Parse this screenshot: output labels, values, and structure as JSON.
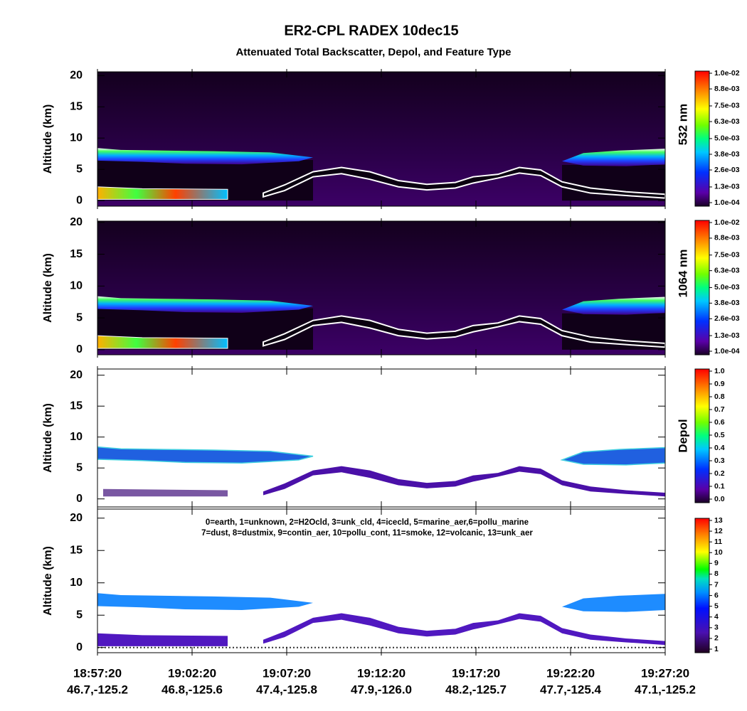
{
  "title": "ER2-CPL RADEX 10dec15",
  "subtitle": "Attenuated Total Backscatter, Depol, and Feature Type",
  "time_axis": {
    "categories": [
      "18:57:20",
      "19:02:20",
      "19:07:20",
      "19:12:20",
      "19:17:20",
      "19:22:20",
      "19:27:20"
    ],
    "locations": [
      "46.7,-125.2",
      "46.8,-125.6",
      "47.4,-125.8",
      "47.9,-126.0",
      "48.2,-125.7",
      "47.7,-125.4",
      "47.1,-125.2"
    ]
  },
  "chart_data": [
    {
      "type": "curtain",
      "variant": "backscatter",
      "ylabel": "Altitude (km)",
      "ylim": [
        -0.9,
        20.6
      ],
      "yticks": [
        0,
        5,
        10,
        15,
        20
      ],
      "colorbar": {
        "label": "532 nm",
        "clim": [
          0.0001,
          0.01
        ],
        "colormap": "rainbow",
        "ticks": [
          {
            "value": 0.0001,
            "label": "1.0e-04"
          },
          {
            "value": 0.0013,
            "label": "1.3e-03"
          },
          {
            "value": 0.0026,
            "label": "2.6e-03"
          },
          {
            "value": 0.0038,
            "label": "3.8e-03"
          },
          {
            "value": 0.005,
            "label": "5.0e-03"
          },
          {
            "value": 0.0063,
            "label": "6.3e-03"
          },
          {
            "value": 0.0075,
            "label": "7.5e-03"
          },
          {
            "value": 0.0088,
            "label": "8.8e-03"
          },
          {
            "value": 0.01,
            "label": "1.0e-02"
          }
        ]
      }
    },
    {
      "type": "curtain",
      "variant": "backscatter",
      "ylabel": "Altitude (km)",
      "ylim": [
        -0.8,
        20.2
      ],
      "yticks": [
        0,
        5,
        10,
        15,
        20
      ],
      "colorbar": {
        "label": "1064 nm",
        "clim": [
          0.0001,
          0.01
        ],
        "colormap": "rainbow",
        "ticks": [
          {
            "value": 0.0001,
            "label": "1.0e-04"
          },
          {
            "value": 0.0013,
            "label": "1.3e-03"
          },
          {
            "value": 0.0026,
            "label": "2.6e-03"
          },
          {
            "value": 0.0038,
            "label": "3.8e-03"
          },
          {
            "value": 0.005,
            "label": "5.0e-03"
          },
          {
            "value": 0.0063,
            "label": "6.3e-03"
          },
          {
            "value": 0.0075,
            "label": "7.5e-03"
          },
          {
            "value": 0.0088,
            "label": "8.8e-03"
          },
          {
            "value": 0.01,
            "label": "1.0e-02"
          }
        ]
      }
    },
    {
      "type": "curtain",
      "variant": "depol",
      "ylabel": "Altitude (km)",
      "ylim": [
        -1.3,
        21.0
      ],
      "yticks": [
        0,
        5,
        10,
        15,
        20
      ],
      "colorbar": {
        "label": "Depol",
        "clim": [
          0,
          1
        ],
        "colormap": "rainbow",
        "ticks": [
          {
            "value": 0,
            "label": "0.0"
          },
          0.1,
          0.2,
          0.3,
          0.4,
          0.5,
          0.6,
          0.7,
          0.8,
          0.9,
          {
            "value": 1,
            "label": "1.0"
          }
        ]
      }
    },
    {
      "type": "curtain",
      "variant": "feature",
      "ylabel": "Altitude (km)",
      "ylim": [
        -0.8,
        21.4
      ],
      "yticks": [
        0,
        5,
        10,
        15,
        20
      ],
      "annotations": [
        "0=earth, 1=unknown, 2=H2Ocld, 3=unk_cld, 4=icecld, 5=marine_aer,6=pollu_marine",
        "7=dust, 8=dustmix, 9=contin_aer, 10=pollu_cont, 11=smoke, 12=volcanic, 13=unk_aer"
      ],
      "colorbar": {
        "clim": [
          1,
          13
        ],
        "colormap": "feature",
        "ticks": [
          1,
          2,
          3,
          4,
          5,
          6,
          7,
          8,
          9,
          10,
          11,
          12,
          13
        ]
      }
    }
  ]
}
